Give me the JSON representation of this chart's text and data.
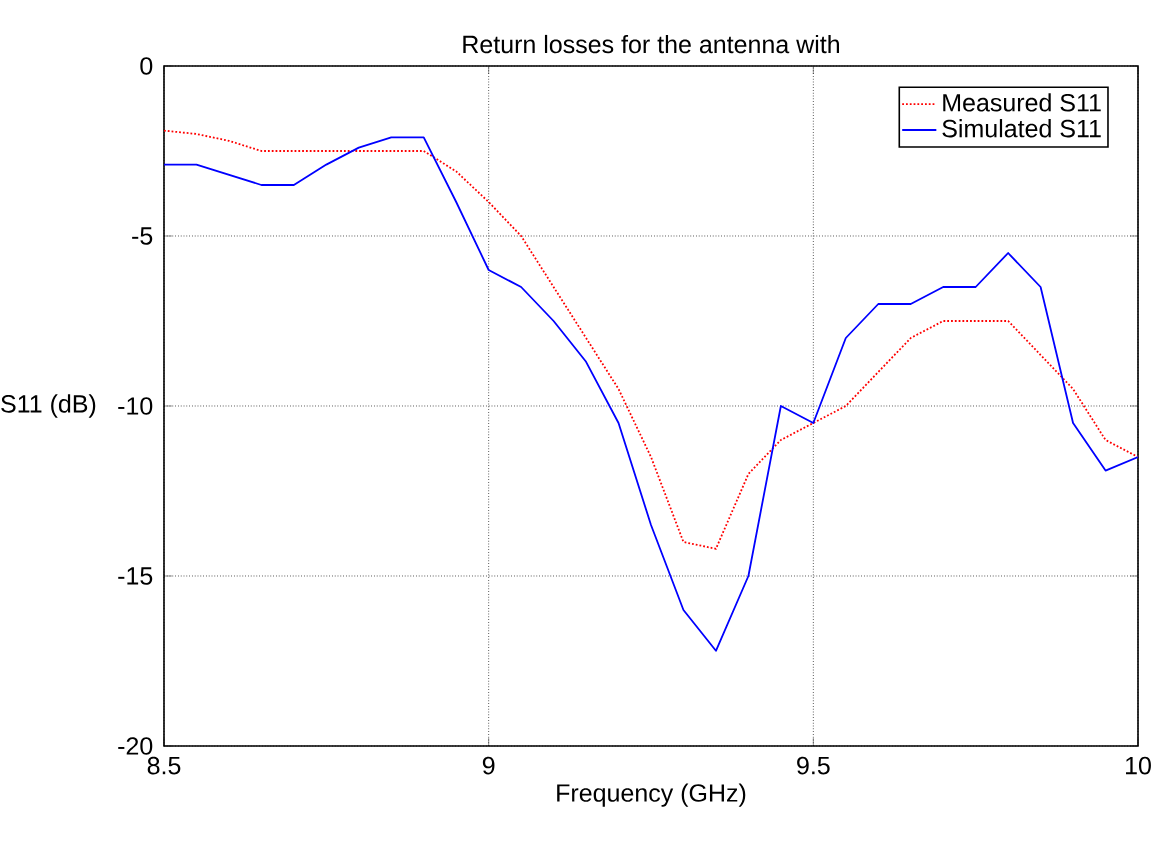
{
  "chart_data": {
    "type": "line",
    "title": "Return losses for the antenna with",
    "xlabel": "Frequency (GHz)",
    "ylabel": "S11 (dB)",
    "x": [
      8.5,
      8.55,
      8.6,
      8.65,
      8.7,
      8.75,
      8.8,
      8.85,
      8.9,
      8.95,
      9.0,
      9.05,
      9.1,
      9.15,
      9.2,
      9.25,
      9.3,
      9.35,
      9.4,
      9.45,
      9.5,
      9.55,
      9.6,
      9.65,
      9.7,
      9.75,
      9.8,
      9.85,
      9.9,
      9.95,
      10.0
    ],
    "series": [
      {
        "name": "Measured S11",
        "color": "#ff0000",
        "line_style": "dotted",
        "values": [
          -1.9,
          -2.0,
          -2.2,
          -2.5,
          -2.5,
          -2.5,
          -2.5,
          -2.5,
          -2.5,
          -3.1,
          -4.0,
          -5.0,
          -6.5,
          -8.0,
          -9.5,
          -11.5,
          -14.0,
          -14.2,
          -12.0,
          -11.0,
          -10.5,
          -10.0,
          -9.0,
          -8.0,
          -7.5,
          -7.5,
          -7.5,
          -8.5,
          -9.5,
          -11.0,
          -11.5
        ]
      },
      {
        "name": "Simulated S11",
        "color": "#0000ff",
        "line_style": "solid",
        "values": [
          -2.9,
          -2.9,
          -3.2,
          -3.5,
          -3.5,
          -2.9,
          -2.4,
          -2.1,
          -2.1,
          -4.0,
          -6.0,
          -6.5,
          -7.5,
          -8.7,
          -10.5,
          -13.5,
          -16.0,
          -17.2,
          -15.0,
          -10.0,
          -10.5,
          -8.0,
          -7.0,
          -7.0,
          -6.5,
          -6.5,
          -5.5,
          -6.5,
          -10.5,
          -11.9,
          -11.5
        ]
      }
    ],
    "xlim": [
      8.5,
      10
    ],
    "ylim": [
      -20,
      0
    ],
    "xticks": [
      8.5,
      9,
      9.5,
      10
    ],
    "yticks": [
      -20,
      -15,
      -10,
      -5,
      0
    ],
    "grid": true,
    "legend": "top right",
    "marker": "none"
  }
}
